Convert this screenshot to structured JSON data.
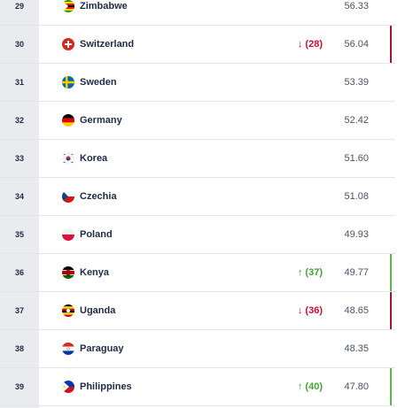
{
  "rankings": [
    {
      "rank": "29",
      "country": "Zimbabwe",
      "movement": "",
      "direction": "",
      "points": "56.33",
      "flag": "zimbabwe-flag-icon"
    },
    {
      "rank": "30",
      "country": "Switzerland",
      "movement": "↓ (28)",
      "direction": "down",
      "points": "56.04",
      "flag": "switzerland-flag-icon"
    },
    {
      "rank": "31",
      "country": "Sweden",
      "movement": "",
      "direction": "",
      "points": "53.39",
      "flag": "sweden-flag-icon"
    },
    {
      "rank": "32",
      "country": "Germany",
      "movement": "",
      "direction": "",
      "points": "52.42",
      "flag": "germany-flag-icon"
    },
    {
      "rank": "33",
      "country": "Korea",
      "movement": "",
      "direction": "",
      "points": "51.60",
      "flag": "korea-flag-icon"
    },
    {
      "rank": "34",
      "country": "Czechia",
      "movement": "",
      "direction": "",
      "points": "51.08",
      "flag": "czechia-flag-icon"
    },
    {
      "rank": "35",
      "country": "Poland",
      "movement": "",
      "direction": "",
      "points": "49.93",
      "flag": "poland-flag-icon"
    },
    {
      "rank": "36",
      "country": "Kenya",
      "movement": "↑ (37)",
      "direction": "up",
      "points": "49.77",
      "flag": "kenya-flag-icon"
    },
    {
      "rank": "37",
      "country": "Uganda",
      "movement": "↓ (36)",
      "direction": "down",
      "points": "48.65",
      "flag": "uganda-flag-icon"
    },
    {
      "rank": "38",
      "country": "Paraguay",
      "movement": "",
      "direction": "",
      "points": "48.35",
      "flag": "paraguay-flag-icon"
    },
    {
      "rank": "39",
      "country": "Philippines",
      "movement": "↑ (40)",
      "direction": "up",
      "points": "47.80",
      "flag": "philippines-flag-icon"
    }
  ],
  "colors": {
    "up": "#3fa535",
    "down": "#c8102e",
    "text": "#1f2a44",
    "rank_column": "#eaebee"
  }
}
